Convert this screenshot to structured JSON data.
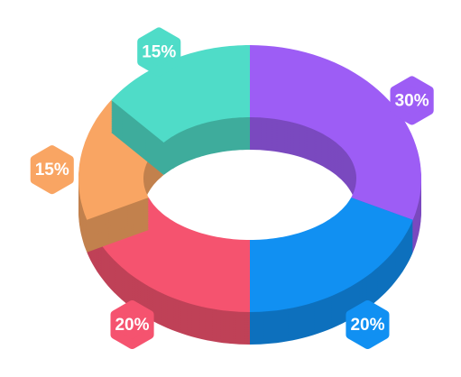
{
  "chart_data": {
    "type": "pie",
    "values": [
      30,
      20,
      20,
      15,
      15
    ],
    "value_labels": [
      "30%",
      "20%",
      "20%",
      "15%",
      "15%"
    ],
    "colors": [
      "#9d5df5",
      "#1190f2",
      "#f5536f",
      "#f9a563",
      "#4fdcc8"
    ]
  }
}
